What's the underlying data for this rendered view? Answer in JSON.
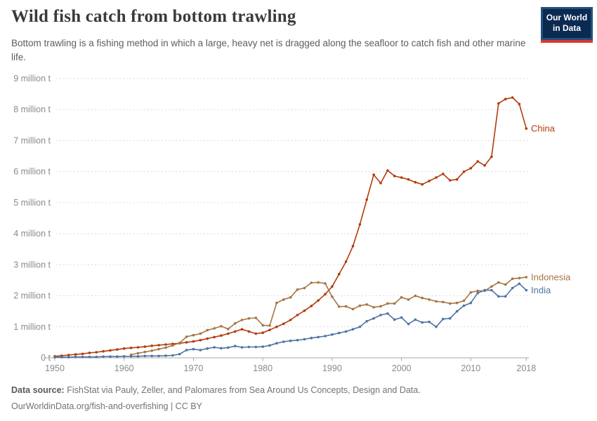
{
  "header": {
    "title": "Wild fish catch from bottom trawling",
    "subtitle": "Bottom trawling is a fishing method in which a large, heavy net is dragged along the seafloor to catch fish and other marine life.",
    "logo": {
      "line1": "Our World",
      "line2": "in Data"
    }
  },
  "footer": {
    "datasource_label": "Data source:",
    "datasource_text": " FishStat via Pauly, Zeller, and Palomares from Sea Around Us Concepts, Design and Data.",
    "link_line": "OurWorldinData.org/fish-and-overfishing | CC BY"
  },
  "colors": {
    "china": "#b23c0c",
    "indonesia": "#a57642",
    "india": "#4f73a4",
    "grid": "#dcdcdc",
    "axis": "#a8a8a8",
    "tick_text": "#8b8b8b",
    "logo_navy": "#0a2a52",
    "logo_red": "#dc3830"
  },
  "chart_data": {
    "type": "line",
    "title": "Wild fish catch from bottom trawling",
    "unit": "million tonnes",
    "xlim": [
      1950,
      2018
    ],
    "ylim": [
      0,
      9
    ],
    "grid": "horizontal dashed",
    "legend_position": "line-end labels",
    "x_ticks": [
      1950,
      1960,
      1970,
      1980,
      1990,
      2000,
      2010,
      2018
    ],
    "y_tick_labels": [
      "0 t",
      "1 million t",
      "2 million t",
      "3 million t",
      "4 million t",
      "5 million t",
      "6 million t",
      "7 million t",
      "8 million t",
      "9 million t"
    ],
    "x": [
      1950,
      1951,
      1952,
      1953,
      1954,
      1955,
      1956,
      1957,
      1958,
      1959,
      1960,
      1961,
      1962,
      1963,
      1964,
      1965,
      1966,
      1967,
      1968,
      1969,
      1970,
      1971,
      1972,
      1973,
      1974,
      1975,
      1976,
      1977,
      1978,
      1979,
      1980,
      1981,
      1982,
      1983,
      1984,
      1985,
      1986,
      1987,
      1988,
      1989,
      1990,
      1991,
      1992,
      1993,
      1994,
      1995,
      1996,
      1997,
      1998,
      1999,
      2000,
      2001,
      2002,
      2003,
      2004,
      2005,
      2006,
      2007,
      2008,
      2009,
      2010,
      2011,
      2012,
      2013,
      2014,
      2015,
      2016,
      2017,
      2018
    ],
    "series": [
      {
        "name": "China",
        "color": "#b23c0c",
        "values": [
          0.05,
          0.07,
          0.09,
          0.11,
          0.13,
          0.16,
          0.18,
          0.21,
          0.24,
          0.27,
          0.3,
          0.32,
          0.34,
          0.36,
          0.39,
          0.41,
          0.43,
          0.45,
          0.47,
          0.5,
          0.53,
          0.57,
          0.62,
          0.67,
          0.72,
          0.78,
          0.85,
          0.92,
          0.85,
          0.78,
          0.81,
          0.9,
          1.0,
          1.1,
          1.22,
          1.38,
          1.52,
          1.67,
          1.85,
          2.05,
          2.3,
          2.7,
          3.1,
          3.6,
          4.3,
          5.1,
          5.9,
          5.63,
          6.04,
          5.86,
          5.81,
          5.75,
          5.66,
          5.59,
          5.7,
          5.81,
          5.93,
          5.72,
          5.75,
          6.0,
          6.11,
          6.33,
          6.2,
          6.48,
          8.2,
          8.34,
          8.39,
          8.18,
          7.39
        ]
      },
      {
        "name": "Indonesia",
        "color": "#a57642",
        "values": [
          null,
          null,
          null,
          null,
          null,
          null,
          null,
          null,
          null,
          null,
          null,
          0.1,
          0.15,
          0.19,
          0.23,
          0.28,
          0.33,
          0.4,
          0.48,
          0.68,
          0.73,
          0.78,
          0.89,
          0.95,
          1.02,
          0.93,
          1.11,
          1.22,
          1.27,
          1.29,
          1.05,
          1.04,
          1.77,
          1.88,
          1.95,
          2.2,
          2.25,
          2.42,
          2.43,
          2.4,
          1.97,
          1.65,
          1.66,
          1.57,
          1.68,
          1.72,
          1.63,
          1.66,
          1.75,
          1.75,
          1.95,
          1.88,
          2.0,
          1.93,
          1.88,
          1.82,
          1.8,
          1.75,
          1.77,
          1.84,
          2.11,
          2.16,
          2.16,
          2.3,
          2.43,
          2.36,
          2.55,
          2.57,
          2.6
        ]
      },
      {
        "name": "India",
        "color": "#4f73a4",
        "values": [
          0.02,
          0.02,
          0.02,
          0.03,
          0.03,
          0.03,
          0.03,
          0.04,
          0.04,
          0.04,
          0.05,
          0.05,
          0.05,
          0.06,
          0.06,
          0.06,
          0.07,
          0.08,
          0.12,
          0.25,
          0.28,
          0.25,
          0.3,
          0.34,
          0.31,
          0.33,
          0.38,
          0.34,
          0.35,
          0.35,
          0.36,
          0.4,
          0.47,
          0.52,
          0.55,
          0.57,
          0.6,
          0.64,
          0.67,
          0.7,
          0.75,
          0.8,
          0.85,
          0.92,
          1.0,
          1.18,
          1.27,
          1.38,
          1.43,
          1.23,
          1.3,
          1.09,
          1.23,
          1.14,
          1.16,
          1.0,
          1.25,
          1.27,
          1.5,
          1.68,
          1.77,
          2.09,
          2.18,
          2.18,
          1.98,
          1.98,
          2.25,
          2.39,
          2.18
        ]
      }
    ]
  }
}
